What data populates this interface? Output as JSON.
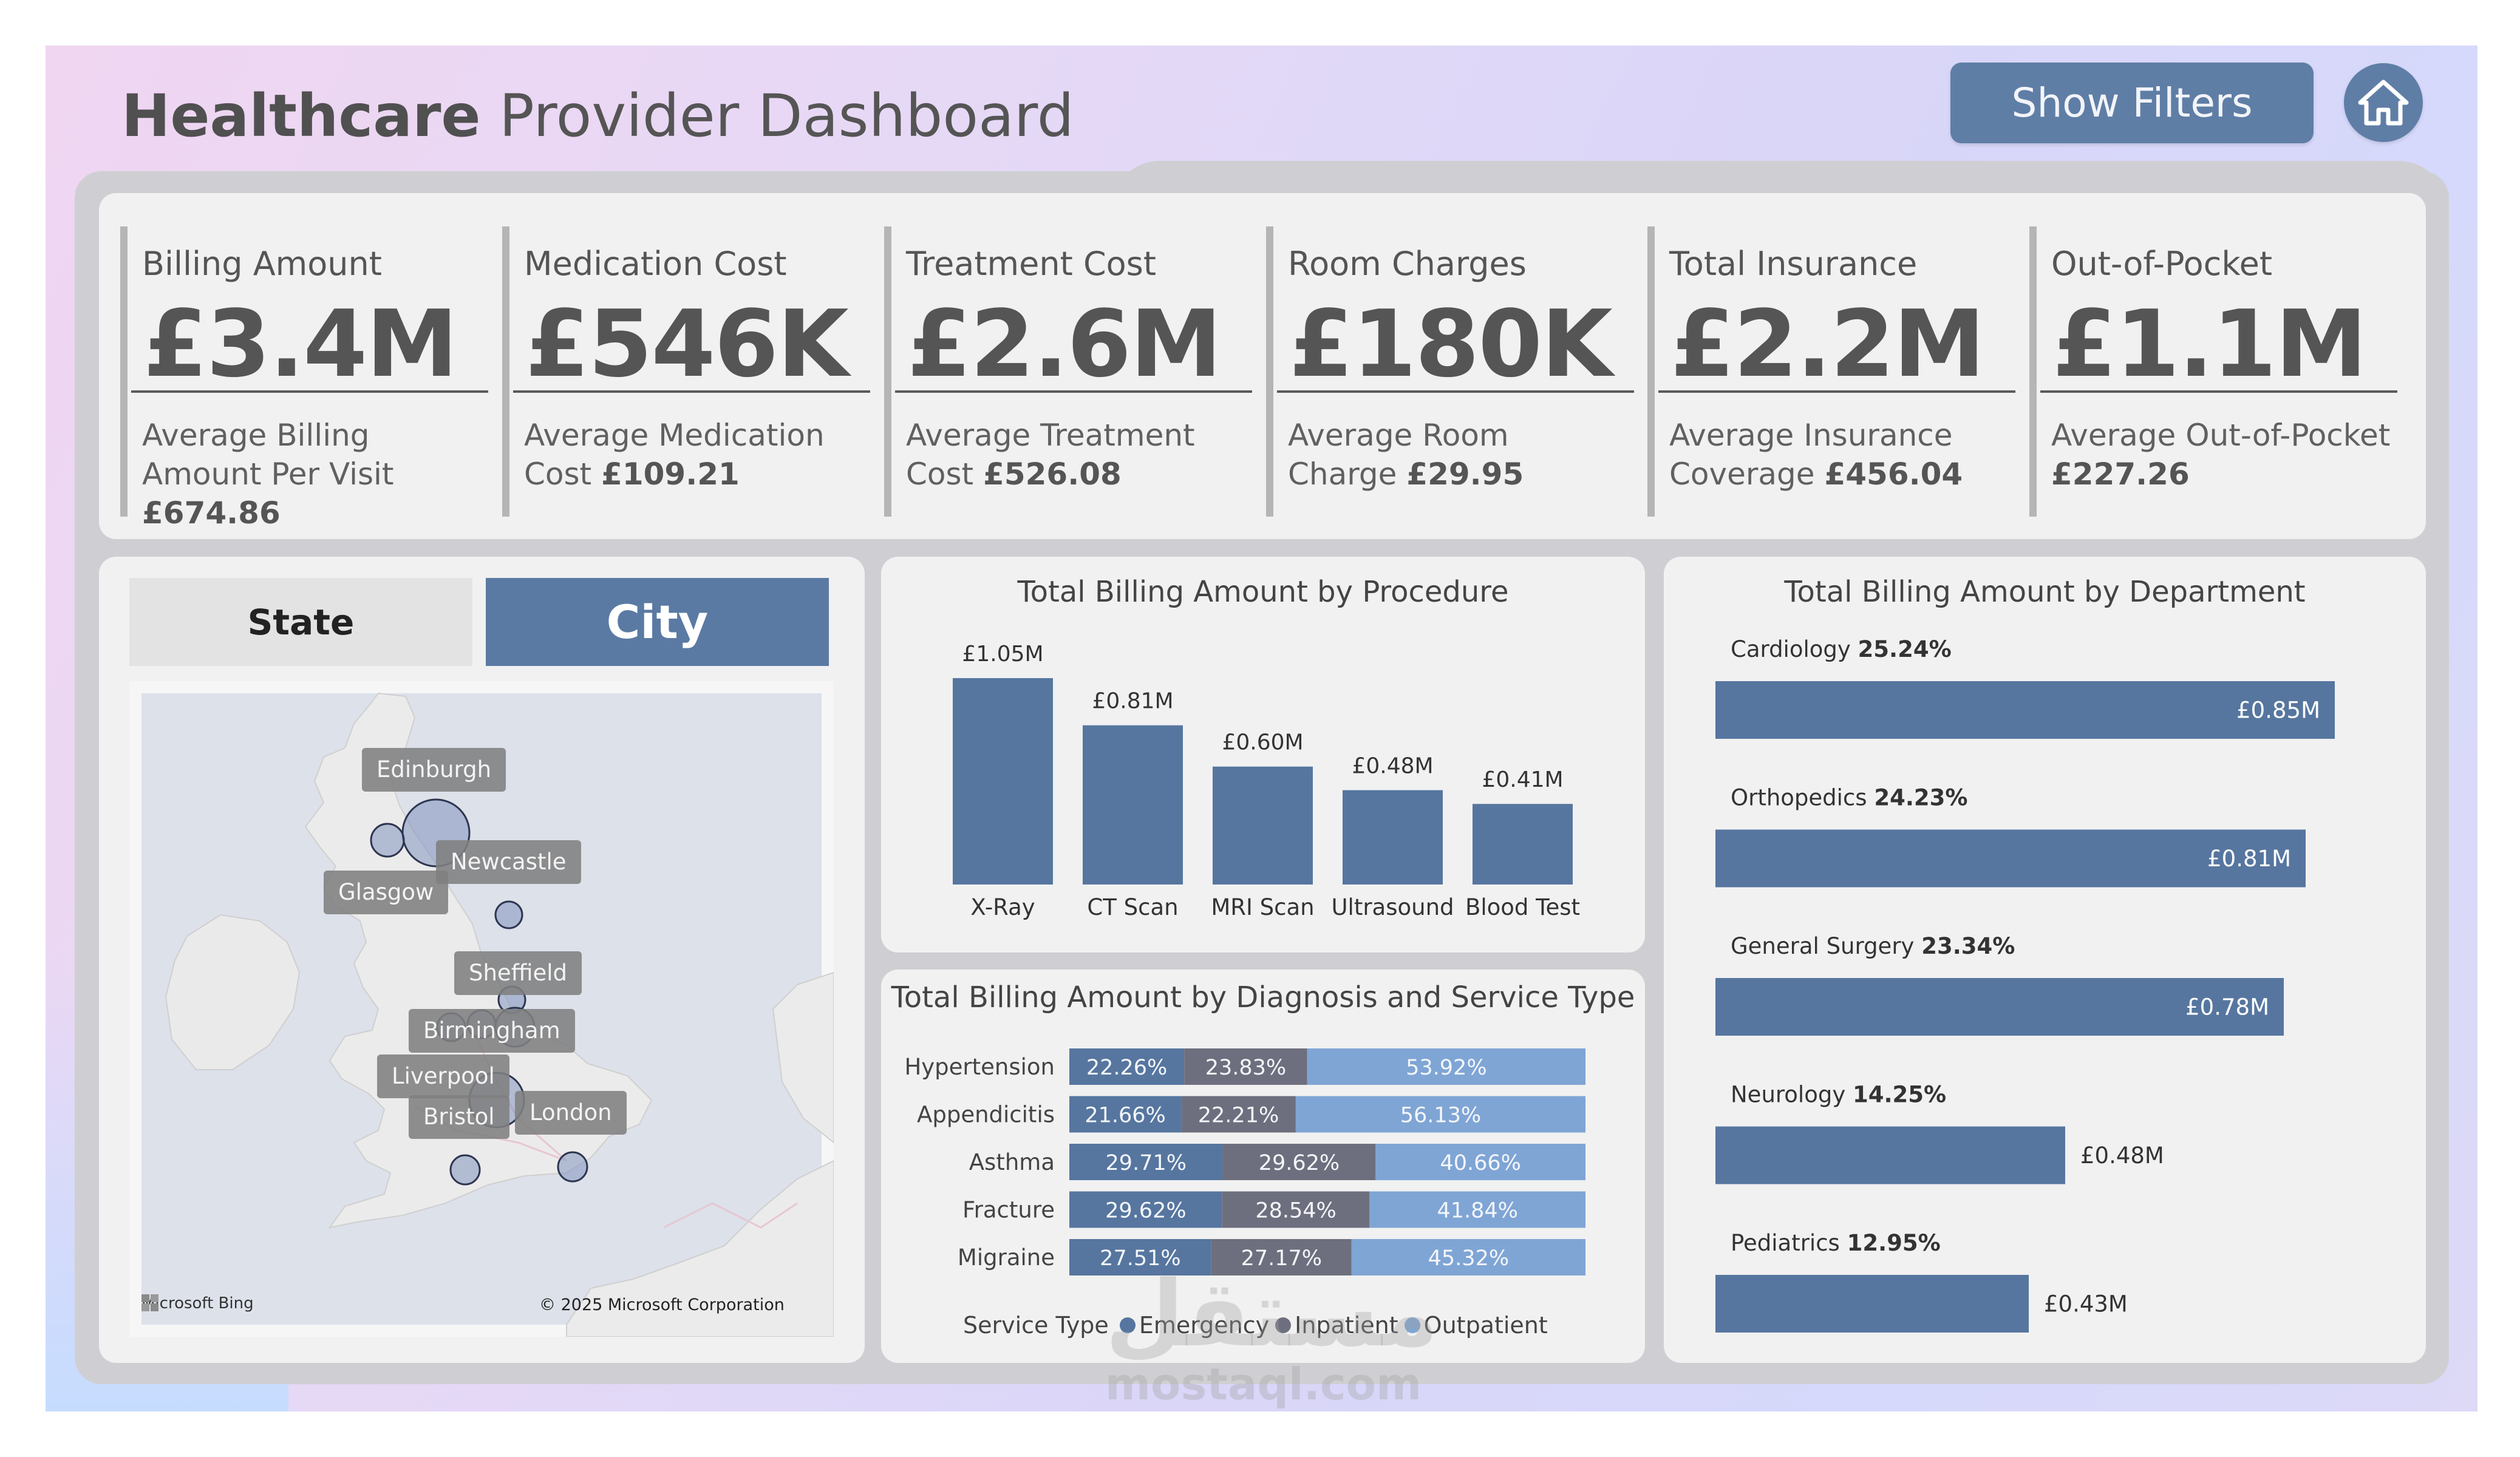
{
  "header": {
    "title_bold": "Healthcare",
    "title_rest": "Provider Dashboard",
    "filters_button": "Show Filters",
    "home_icon": "home-icon"
  },
  "kpis": [
    {
      "label": "Billing Amount",
      "value": "£3.4M",
      "sub_text": "Average Billing Amount Per Visit ",
      "sub_value": "£674.86"
    },
    {
      "label": "Medication Cost",
      "value": "£546K",
      "sub_text": "Average Medication Cost ",
      "sub_value": "£109.21"
    },
    {
      "label": "Treatment Cost",
      "value": "£2.6M",
      "sub_text": "Average Treatment Cost ",
      "sub_value": "£526.08"
    },
    {
      "label": "Room Charges",
      "value": "£180K",
      "sub_text": "Average Room Charge ",
      "sub_value": "£29.95"
    },
    {
      "label": "Total Insurance",
      "value": "£2.2M",
      "sub_text": "Average Insurance Coverage ",
      "sub_value": "£456.04"
    },
    {
      "label": "Out-of-Pocket",
      "value": "£1.1M",
      "sub_text": "Average Out-of-Pocket ",
      "sub_value": "£227.26"
    }
  ],
  "map": {
    "tabs": {
      "state": "State",
      "city": "City"
    },
    "active_tab": "City",
    "cities": [
      "Edinburgh",
      "Glasgow",
      "Newcastle",
      "Sheffield",
      "Birmingham",
      "Liverpool",
      "Bristol",
      "London"
    ],
    "attribution": "Microsoft Bing",
    "copyright": "© 2025 Microsoft Corporation"
  },
  "chart_data": [
    {
      "type": "bar",
      "title": "Total Billing Amount by Procedure",
      "categories": [
        "X-Ray",
        "CT Scan",
        "MRI Scan",
        "Ultrasound",
        "Blood Test"
      ],
      "values": [
        1.05,
        0.81,
        0.6,
        0.48,
        0.41
      ],
      "value_labels": [
        "£1.05M",
        "£0.81M",
        "£0.60M",
        "£0.48M",
        "£0.41M"
      ],
      "color": "#56769f"
    },
    {
      "type": "bar",
      "orientation": "horizontal-stacked-100",
      "title": "Total Billing Amount by Diagnosis and Service Type",
      "categories": [
        "Hypertension",
        "Appendicitis",
        "Asthma",
        "Fracture",
        "Migraine"
      ],
      "series": [
        {
          "name": "Emergency",
          "values": [
            22.26,
            21.66,
            29.71,
            29.62,
            27.51
          ],
          "labels": [
            "22.26%",
            "21.66%",
            "29.71%",
            "29.62%",
            "27.51%"
          ],
          "color": "#56769f"
        },
        {
          "name": "Inpatient",
          "values": [
            23.83,
            22.21,
            29.62,
            28.54,
            27.17
          ],
          "labels": [
            "23.83%",
            "22.21%",
            "29.62%",
            "28.54%",
            "27.17%"
          ],
          "color": "#6e6f7e"
        },
        {
          "name": "Outpatient",
          "values": [
            53.92,
            56.13,
            40.66,
            41.84,
            45.32
          ],
          "labels": [
            "53.92%",
            "56.13%",
            "40.66%",
            "41.84%",
            "45.32%"
          ],
          "color": "#7fa5d5"
        }
      ],
      "legend_title": "Service Type"
    },
    {
      "type": "bar",
      "orientation": "horizontal",
      "title": "Total Billing Amount by Department",
      "categories": [
        "Cardiology",
        "Orthopedics",
        "General Surgery",
        "Neurology",
        "Pediatrics"
      ],
      "shares": [
        "25.24%",
        "24.23%",
        "23.34%",
        "14.25%",
        "12.95%"
      ],
      "values": [
        0.85,
        0.81,
        0.78,
        0.48,
        0.43
      ],
      "value_labels": [
        "£0.85M",
        "£0.81M",
        "£0.78M",
        "£0.48M",
        "£0.43M"
      ],
      "color": "#56769f"
    }
  ],
  "watermark": {
    "arabic": "مستقل",
    "latin": "mostaql.com"
  }
}
